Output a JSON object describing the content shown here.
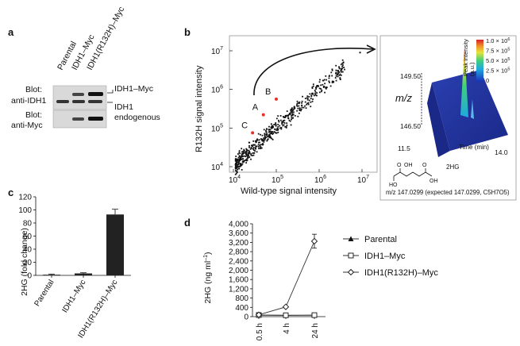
{
  "panels": {
    "a": {
      "letter": "a",
      "lanes": [
        "Parental",
        "IDH1–Myc",
        "IDH1(R132H)–Myc"
      ],
      "blot1": {
        "label_line1": "Blot:",
        "label_line2": "anti-IDH1"
      },
      "blot2": {
        "label_line1": "Blot:",
        "label_line2": "anti-Myc"
      },
      "band_labels": {
        "idh1myc": "IDH1–Myc",
        "endog_line1": "IDH1",
        "endog_line2": "endogenous"
      }
    },
    "b": {
      "letter": "b",
      "xlabel": "Wild-type signal intensity",
      "ylabel": "R132H signal intensity",
      "x_ticks": [
        "10",
        "10",
        "10",
        "10"
      ],
      "x_tick_exps": [
        "4",
        "5",
        "6",
        "7"
      ],
      "y_ticks": [
        "10",
        "10",
        "10",
        "10"
      ],
      "y_tick_exps": [
        "4",
        "5",
        "6",
        "7"
      ],
      "point_labels": [
        "A",
        "B",
        "C"
      ],
      "arrow_target": "A",
      "inset": {
        "mz_label": "m/z",
        "mz_high": "149.50",
        "mz_low": "146.50",
        "time_label": "Time (min)",
        "time_start": "11.5",
        "time_end": "14.0",
        "colorbar_title_line1": "Peak intensity",
        "colorbar_title_line2": "(a.u.)",
        "colorbar_ticks": [
          "1.0 × 10",
          "7.5 × 10",
          "5.0 × 10",
          "2.5 × 10",
          "0"
        ],
        "colorbar_exps": [
          "6",
          "5",
          "5",
          "5",
          ""
        ],
        "compound_name": "2HG",
        "mz_caption": "m/z 147.0299 (expected 147.0299, C5H7O5)"
      }
    },
    "c": {
      "letter": "c",
      "ylabel": "2HG (fold change)",
      "y_ticks": [
        "0",
        "20",
        "40",
        "60",
        "80",
        "100",
        "120"
      ],
      "categories": [
        "Parental",
        "IDH1–Myc",
        "IDH1(R132H)–Myc"
      ]
    },
    "d": {
      "letter": "d",
      "ylabel": "2HG (ng ml",
      "ylabel_sup": "–1",
      "ylabel_close": ")",
      "y_ticks": [
        "0",
        "400",
        "800",
        "1,200",
        "1,600",
        "2,000",
        "2,400",
        "2,800",
        "3,200",
        "3,600",
        "4,000"
      ],
      "x_ticks": [
        "0.5 h",
        "4 h",
        "24 h"
      ],
      "legend": [
        "Parental",
        "IDH1–Myc",
        "IDH1(R132H)–Myc"
      ]
    }
  },
  "chart_data": [
    {
      "type": "scatter",
      "panel": "b",
      "xlabel": "Wild-type signal intensity",
      "ylabel": "R132H signal intensity",
      "xscale": "log",
      "yscale": "log",
      "xlim": [
        10000,
        10000000
      ],
      "ylim": [
        10000,
        10000000
      ],
      "highlighted": [
        {
          "label": "A",
          "x": 50000,
          "y": 220000
        },
        {
          "label": "B",
          "x": 100000,
          "y": 560000
        },
        {
          "label": "C",
          "x": 28000,
          "y": 75000
        }
      ]
    },
    {
      "type": "bar",
      "panel": "c",
      "categories": [
        "Parental",
        "IDH1–Myc",
        "IDH1(R132H)–Myc"
      ],
      "values": [
        1,
        3,
        93
      ],
      "errors": [
        1,
        1,
        8
      ],
      "ylabel": "2HG (fold change)",
      "ylim": [
        0,
        120
      ]
    },
    {
      "type": "line",
      "panel": "d",
      "categories": [
        "0.5 h",
        "4 h",
        "24 h"
      ],
      "series": [
        {
          "name": "Parental",
          "values": [
            60,
            55,
            60
          ],
          "errors": [
            0,
            0,
            0
          ]
        },
        {
          "name": "IDH1–Myc",
          "values": [
            70,
            60,
            65
          ],
          "errors": [
            0,
            0,
            0
          ]
        },
        {
          "name": "IDH1(R132H)–Myc",
          "values": [
            80,
            420,
            3250
          ],
          "errors": [
            0,
            0,
            300
          ]
        }
      ],
      "ylabel": "2HG (ng ml–1)",
      "ylim": [
        0,
        4000
      ]
    }
  ]
}
